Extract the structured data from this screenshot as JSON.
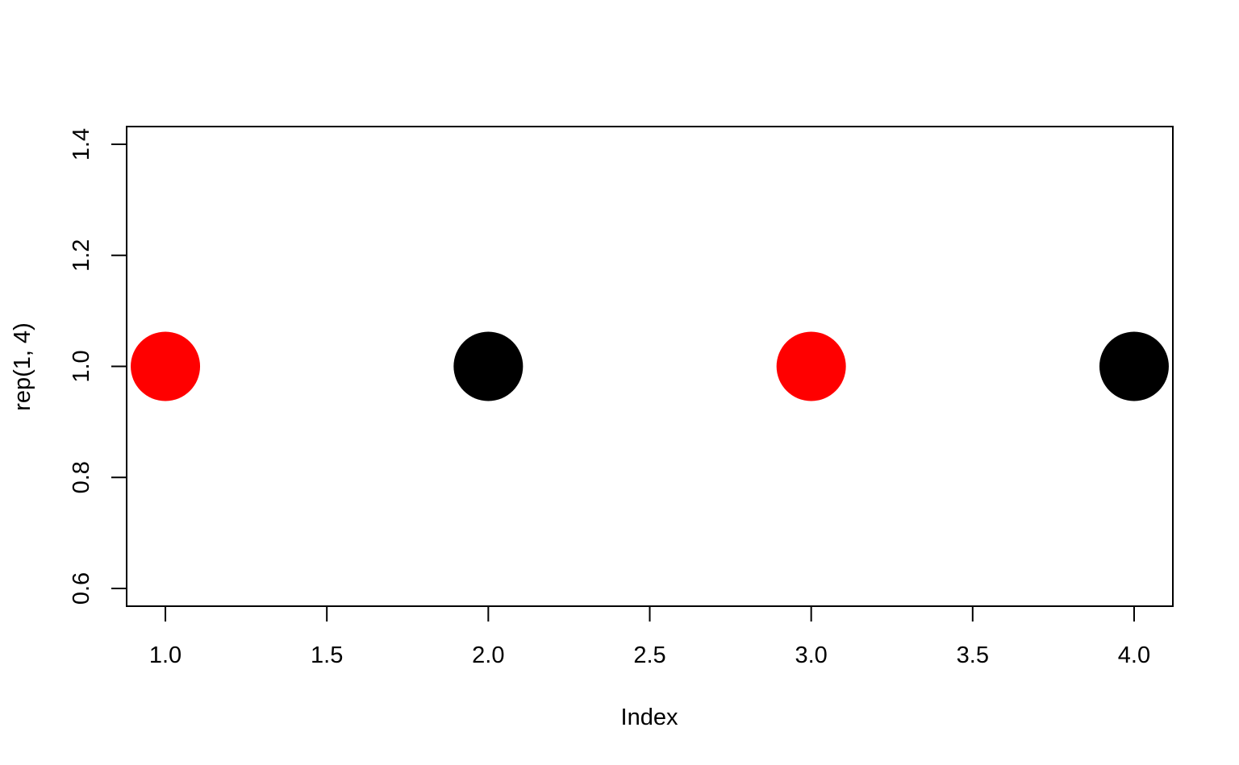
{
  "chart_data": {
    "type": "scatter",
    "title": "",
    "xlabel": "Index",
    "ylabel": "rep(1, 4)",
    "xlim": [
      0.88,
      4.12
    ],
    "ylim": [
      0.568,
      1.432
    ],
    "x_ticks": [
      1.0,
      1.5,
      2.0,
      2.5,
      3.0,
      3.5,
      4.0
    ],
    "x_tick_labels": [
      "1.0",
      "1.5",
      "2.0",
      "2.5",
      "3.0",
      "3.5",
      "4.0"
    ],
    "y_ticks": [
      0.6,
      0.8,
      1.0,
      1.2,
      1.4
    ],
    "y_tick_labels": [
      "0.6",
      "0.8",
      "1.0",
      "1.2",
      "1.4"
    ],
    "grid": false,
    "legend": "none",
    "series": [
      {
        "x": [
          1,
          2,
          3,
          4
        ],
        "y": [
          1.0,
          1.0,
          1.0,
          1.0
        ],
        "colors": [
          "#ff0000",
          "#000000",
          "#ff0000",
          "#000000"
        ],
        "marker": "filled-circle"
      }
    ]
  }
}
